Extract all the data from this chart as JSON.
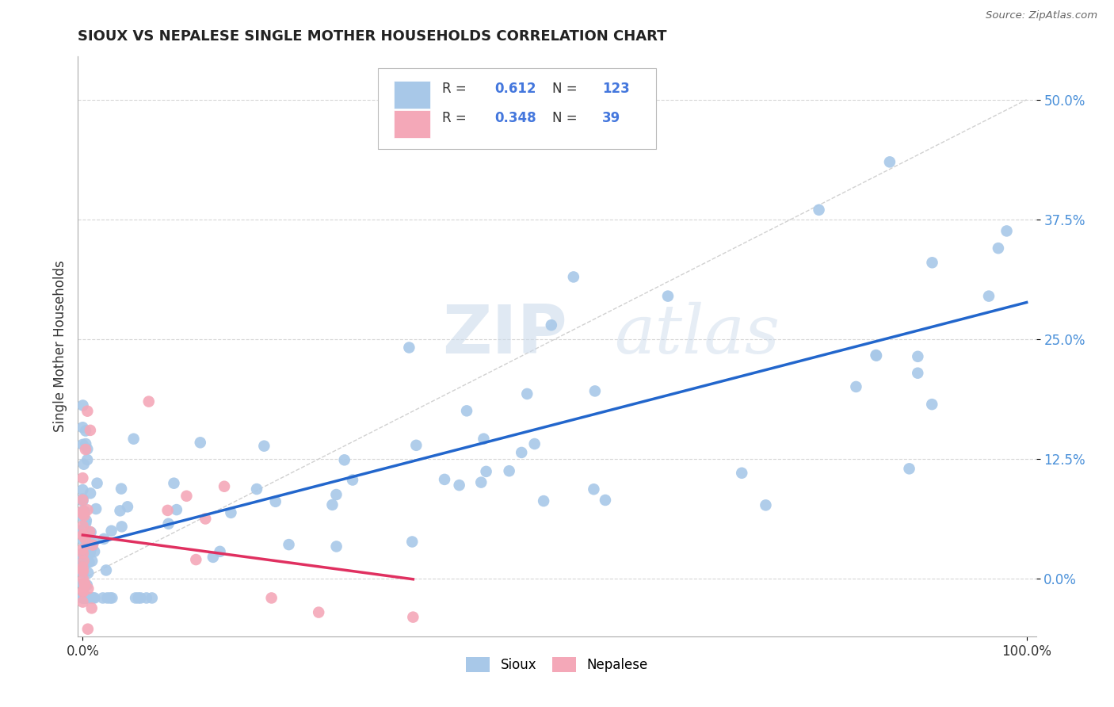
{
  "title": "SIOUX VS NEPALESE SINGLE MOTHER HOUSEHOLDS CORRELATION CHART",
  "source": "Source: ZipAtlas.com",
  "ylabel": "Single Mother Households",
  "ytick_labels": [
    "0.0%",
    "12.5%",
    "25.0%",
    "37.5%",
    "50.0%"
  ],
  "ytick_values": [
    0.0,
    0.125,
    0.25,
    0.375,
    0.5
  ],
  "ytick_color": "#4a90d9",
  "watermark_zip": "ZIP",
  "watermark_atlas": "atlas",
  "legend_R_sioux": "0.612",
  "legend_N_sioux": "123",
  "legend_R_nepal": "0.348",
  "legend_N_nepal": "39",
  "sioux_color": "#a8c8e8",
  "nepal_color": "#f4a8b8",
  "sioux_line_color": "#2266cc",
  "nepal_line_color": "#e03060",
  "diag_color": "#cccccc",
  "background_color": "#ffffff",
  "grid_color": "#cccccc",
  "legend_text_color": "#333333",
  "legend_value_color": "#4477dd"
}
